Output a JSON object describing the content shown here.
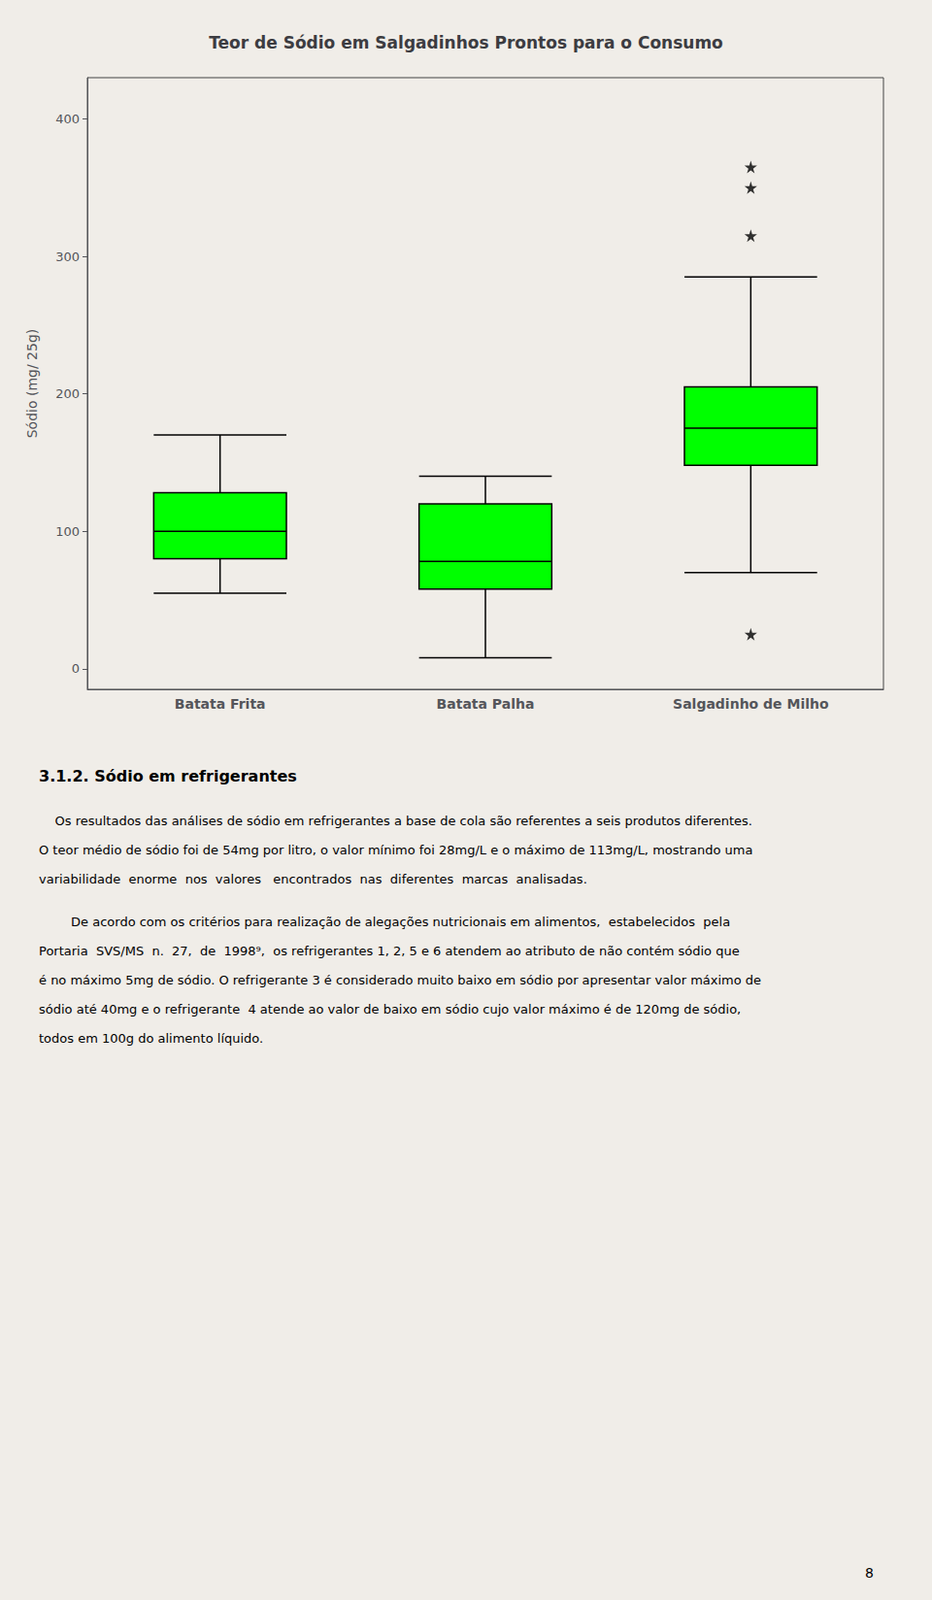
{
  "chart_data": {
    "type": "box",
    "title": "Teor de Sódio em Salgadinhos Prontos para o Consumo",
    "ylabel": "Sódio (mg/ 25g)",
    "categories": [
      "Batata Frita",
      "Batata Palha",
      "Salgadinho de Milho"
    ],
    "boxes": [
      {
        "q1": 80,
        "median": 100,
        "q3": 128,
        "whisker_low": 55,
        "whisker_high": 170,
        "fliers_low": [],
        "fliers_high": []
      },
      {
        "q1": 58,
        "median": 78,
        "q3": 120,
        "whisker_low": 8,
        "whisker_high": 140,
        "fliers_low": [],
        "fliers_high": []
      },
      {
        "q1": 148,
        "median": 175,
        "q3": 205,
        "whisker_low": 70,
        "whisker_high": 285,
        "fliers_low": [
          25
        ],
        "fliers_high": [
          315,
          350,
          365
        ]
      }
    ],
    "color": "#00ff00",
    "marker": "star",
    "ylim": [
      -15,
      430
    ],
    "yticks": [
      0,
      100,
      200,
      300,
      400
    ],
    "grid": false
  },
  "heading": "3.1.2. Sódio em refrigerantes",
  "para1_lines": [
    "    Os resultados das análises de sódio em refrigerantes a base de cola são referentes a seis produtos diferentes.",
    "O teor médio de sódio foi de 54mg por litro, o valor mínimo foi 28mg/L e o máximo de 113mg/L, mostrando uma",
    "variabilidade  enorme  nos  valores   encontrados  nas  diferentes  marcas  analisadas."
  ],
  "para2_lines": [
    "        De acordo com os critérios para realização de alegações nutricionais em alimentos,  estabelecidos  pela",
    "Portaria  SVS/MS  n.  27,  de  1998⁹,  os refrigerantes 1, 2, 5 e 6 atendem ao atributo de não contém sódio que",
    "é no máximo 5mg de sódio. O refrigerante 3 é considerado muito baixo em sódio por apresentar valor máximo de",
    "sódio até 40mg e o refrigerante  4 atende ao valor de baixo em sódio cujo valor máximo é de 120mg de sódio,",
    "todos em 100g do alimento líquido."
  ],
  "page_number": "8"
}
